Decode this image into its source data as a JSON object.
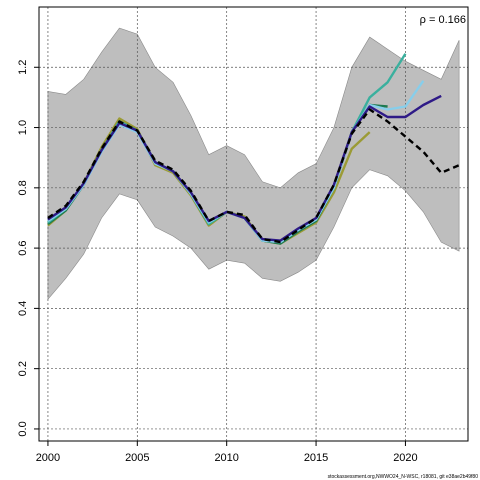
{
  "chart_data": {
    "type": "line",
    "title": "",
    "xlabel": "",
    "ylabel": "",
    "xlim": [
      1999.5,
      2023.5
    ],
    "ylim": [
      -0.04,
      1.4
    ],
    "x_ticks": [
      2000,
      2005,
      2010,
      2015,
      2020
    ],
    "y_ticks": [
      0.0,
      0.2,
      0.4,
      0.6,
      0.8,
      1.0,
      1.2
    ],
    "grid": true,
    "legend": "none",
    "annotation": "ρ = 0.166",
    "credit": "stockassessment.org,NWWO24_N-WSC, r18081, git e38ae2b49f80",
    "colors": {
      "band": "#bebebe",
      "base": "#000000",
      "peel1": "#2e1a87",
      "peel2": "#87ceeb",
      "peel3": "#3ab09e",
      "peel4": "#1e7a50",
      "peel5": "#9b9b35"
    },
    "band": {
      "x": [
        2000,
        2001,
        2002,
        2003,
        2004,
        2005,
        2006,
        2007,
        2008,
        2009,
        2010,
        2011,
        2012,
        2013,
        2014,
        2015,
        2016,
        2017,
        2018,
        2019,
        2020,
        2021,
        2022,
        2023
      ],
      "upper": [
        1.12,
        1.11,
        1.16,
        1.25,
        1.33,
        1.31,
        1.2,
        1.15,
        1.04,
        0.91,
        0.94,
        0.91,
        0.82,
        0.8,
        0.85,
        0.88,
        1.0,
        1.2,
        1.3,
        1.26,
        1.22,
        1.19,
        1.16,
        1.29
      ],
      "lower": [
        0.43,
        0.5,
        0.58,
        0.7,
        0.78,
        0.76,
        0.67,
        0.64,
        0.6,
        0.53,
        0.56,
        0.55,
        0.5,
        0.49,
        0.52,
        0.56,
        0.67,
        0.8,
        0.86,
        0.84,
        0.79,
        0.72,
        0.62,
        0.59
      ]
    },
    "series": [
      {
        "key": "base",
        "dashed": true,
        "x": [
          2000,
          2001,
          2002,
          2003,
          2004,
          2005,
          2006,
          2007,
          2008,
          2009,
          2010,
          2011,
          2012,
          2013,
          2014,
          2015,
          2016,
          2017,
          2018,
          2019,
          2020,
          2021,
          2022,
          2023
        ],
        "values": [
          0.7,
          0.74,
          0.82,
          0.93,
          1.02,
          0.99,
          0.89,
          0.86,
          0.79,
          0.69,
          0.72,
          0.71,
          0.63,
          0.62,
          0.66,
          0.7,
          0.81,
          0.98,
          1.06,
          1.02,
          0.97,
          0.92,
          0.85,
          0.875
        ]
      },
      {
        "key": "peel1",
        "dashed": false,
        "x": [
          2000,
          2001,
          2002,
          2003,
          2004,
          2005,
          2006,
          2007,
          2008,
          2009,
          2010,
          2011,
          2012,
          2013,
          2014,
          2015,
          2016,
          2017,
          2018,
          2019,
          2020,
          2021,
          2022
        ],
        "values": [
          0.695,
          0.735,
          0.815,
          0.925,
          1.015,
          0.99,
          0.885,
          0.855,
          0.785,
          0.69,
          0.72,
          0.7,
          0.63,
          0.625,
          0.665,
          0.7,
          0.81,
          0.985,
          1.07,
          1.035,
          1.035,
          1.075,
          1.105
        ]
      },
      {
        "key": "peel2",
        "dashed": false,
        "x": [
          2000,
          2001,
          2002,
          2003,
          2004,
          2005,
          2006,
          2007,
          2008,
          2009,
          2010,
          2011,
          2012,
          2013,
          2014,
          2015,
          2016,
          2017,
          2018,
          2019,
          2020,
          2021
        ],
        "values": [
          0.69,
          0.73,
          0.81,
          0.92,
          1.01,
          0.985,
          0.88,
          0.855,
          0.78,
          0.685,
          0.72,
          0.7,
          0.625,
          0.62,
          0.66,
          0.695,
          0.8,
          0.985,
          1.075,
          1.06,
          1.07,
          1.155
        ]
      },
      {
        "key": "peel3",
        "dashed": false,
        "x": [
          2000,
          2001,
          2002,
          2003,
          2004,
          2005,
          2006,
          2007,
          2008,
          2009,
          2010,
          2011,
          2012,
          2013,
          2014,
          2015,
          2016,
          2017,
          2018,
          2019,
          2020
        ],
        "values": [
          0.685,
          0.73,
          0.815,
          0.925,
          1.02,
          0.99,
          0.885,
          0.855,
          0.78,
          0.68,
          0.72,
          0.7,
          0.625,
          0.62,
          0.66,
          0.695,
          0.8,
          0.985,
          1.1,
          1.15,
          1.245
        ]
      },
      {
        "key": "peel4",
        "dashed": false,
        "x": [
          2000,
          2001,
          2002,
          2003,
          2004,
          2005,
          2006,
          2007,
          2008,
          2009,
          2010,
          2011,
          2012,
          2013,
          2014,
          2015,
          2016,
          2017,
          2018,
          2019
        ],
        "values": [
          0.68,
          0.725,
          0.81,
          0.925,
          1.02,
          0.99,
          0.885,
          0.855,
          0.78,
          0.68,
          0.72,
          0.7,
          0.625,
          0.615,
          0.655,
          0.69,
          0.8,
          0.985,
          1.075,
          1.07
        ]
      },
      {
        "key": "peel5",
        "dashed": false,
        "x": [
          2000,
          2001,
          2002,
          2003,
          2004,
          2005,
          2006,
          2007,
          2008,
          2009,
          2010,
          2011,
          2012,
          2013,
          2014,
          2015,
          2016,
          2017,
          2018
        ],
        "values": [
          0.675,
          0.725,
          0.815,
          0.935,
          1.03,
          0.995,
          0.875,
          0.85,
          0.775,
          0.675,
          0.72,
          0.705,
          0.625,
          0.615,
          0.65,
          0.685,
          0.785,
          0.93,
          0.985
        ]
      }
    ]
  }
}
